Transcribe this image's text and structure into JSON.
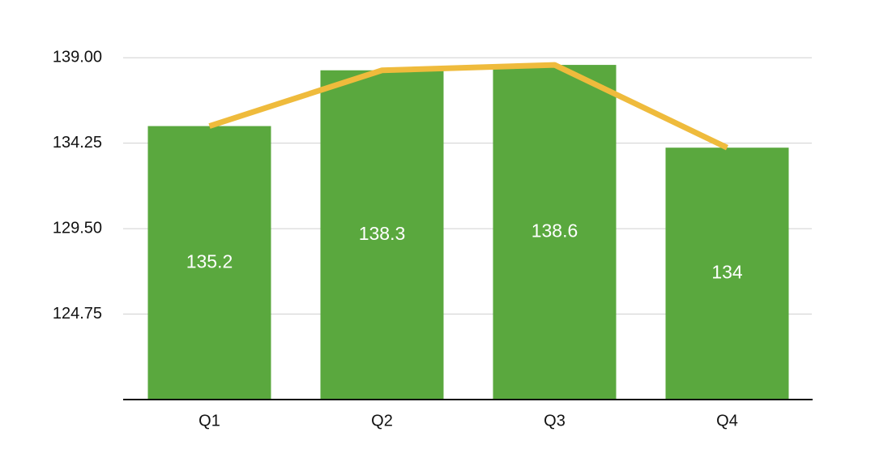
{
  "chart_data": {
    "type": "bar",
    "categories": [
      "Q1",
      "Q2",
      "Q3",
      "Q4"
    ],
    "series": [
      {
        "type": "bar",
        "color": "#5aa83e",
        "values": [
          135.2,
          138.3,
          138.6,
          134
        ]
      },
      {
        "type": "line",
        "color": "#efbb3c",
        "values": [
          135.2,
          138.3,
          138.6,
          134
        ]
      }
    ],
    "ylim": [
      120,
      140
    ],
    "yticks": [
      {
        "value": 124.75,
        "label": "124.75"
      },
      {
        "value": 129.5,
        "label": "129.50"
      },
      {
        "value": 134.25,
        "label": "134.25"
      },
      {
        "value": 139,
        "label": "139.00"
      }
    ],
    "grid": true
  }
}
